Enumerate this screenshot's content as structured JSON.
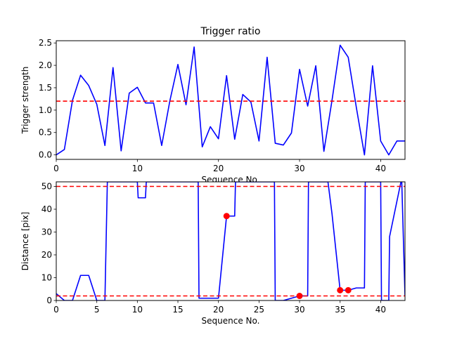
{
  "chart_data": [
    {
      "type": "line",
      "title": "Trigger ratio",
      "xlabel": "Sequence No.",
      "ylabel": "Trigger strength",
      "xlim": [
        0,
        43
      ],
      "ylim": [
        -0.1,
        2.55
      ],
      "xticks": [
        0,
        10,
        20,
        30,
        40
      ],
      "yticks": [
        0.0,
        0.5,
        1.0,
        1.5,
        2.0,
        2.5
      ],
      "ytick_labels": [
        "0.0",
        "0.5",
        "1.0",
        "1.5",
        "2.0",
        "2.5"
      ],
      "series": [
        {
          "color": "#0000ff",
          "x": [
            0,
            1,
            2,
            3,
            4,
            5,
            6,
            7,
            8,
            9,
            10,
            11,
            12,
            13,
            14,
            15,
            16,
            17,
            18,
            19,
            20,
            21,
            22,
            23,
            24,
            25,
            26,
            27,
            28,
            29,
            30,
            31,
            32,
            33,
            34,
            35,
            36,
            37,
            38,
            39,
            40,
            41,
            42,
            43
          ],
          "y": [
            0.0,
            0.12,
            1.22,
            1.78,
            1.55,
            1.13,
            0.21,
            1.95,
            0.09,
            1.38,
            1.51,
            1.16,
            1.16,
            0.21,
            1.2,
            2.02,
            1.12,
            2.41,
            0.18,
            0.63,
            0.36,
            1.77,
            0.35,
            1.35,
            1.18,
            0.31,
            2.18,
            0.26,
            0.22,
            0.49,
            1.91,
            1.09,
            1.99,
            0.08,
            1.22,
            2.45,
            2.18,
            1.06,
            0.0,
            1.99,
            0.31,
            0.0,
            0.31,
            0.31
          ]
        }
      ],
      "hlines": [
        {
          "y": 1.2,
          "color": "#ff0000",
          "style": "dashed"
        }
      ]
    },
    {
      "type": "line",
      "title": "",
      "xlabel": "Sequence No.",
      "ylabel": "Distance [pix]",
      "xlim": [
        0,
        43
      ],
      "ylim": [
        0,
        52
      ],
      "xticks": [
        0,
        5,
        10,
        15,
        20,
        25,
        30,
        35,
        40
      ],
      "yticks": [
        0,
        10,
        20,
        30,
        40,
        50
      ],
      "series": [
        {
          "color": "#0000ff",
          "x": [
            0,
            1,
            2,
            3,
            4,
            5,
            6,
            6.3,
            10,
            10.1,
            11,
            11.1,
            17.5,
            17.6,
            18,
            20,
            21,
            21.1,
            22,
            22.1,
            26.9,
            27,
            28,
            30,
            31,
            31.1,
            33.5,
            34,
            35,
            36,
            37,
            38,
            38.1,
            40,
            40.1,
            41,
            41.1,
            42.5,
            42.6,
            43
          ],
          "y": [
            3,
            0,
            0,
            11,
            11,
            0,
            0,
            52,
            52,
            45,
            45,
            52,
            52,
            1,
            1,
            1,
            37,
            37,
            37,
            52,
            52,
            0,
            0,
            2,
            2,
            52,
            52,
            38,
            4.5,
            4.5,
            5.5,
            5.5,
            52,
            52,
            0,
            0,
            28,
            52,
            52,
            2
          ]
        },
        {
          "color": "#ff0000",
          "style": "markers",
          "x": [
            21,
            30,
            35,
            36
          ],
          "y": [
            37,
            2,
            4.5,
            4.5
          ]
        }
      ],
      "hlines": [
        {
          "y": 50,
          "color": "#ff0000",
          "style": "dashed"
        },
        {
          "y": 2,
          "color": "#ff0000",
          "style": "dashed"
        }
      ]
    }
  ]
}
